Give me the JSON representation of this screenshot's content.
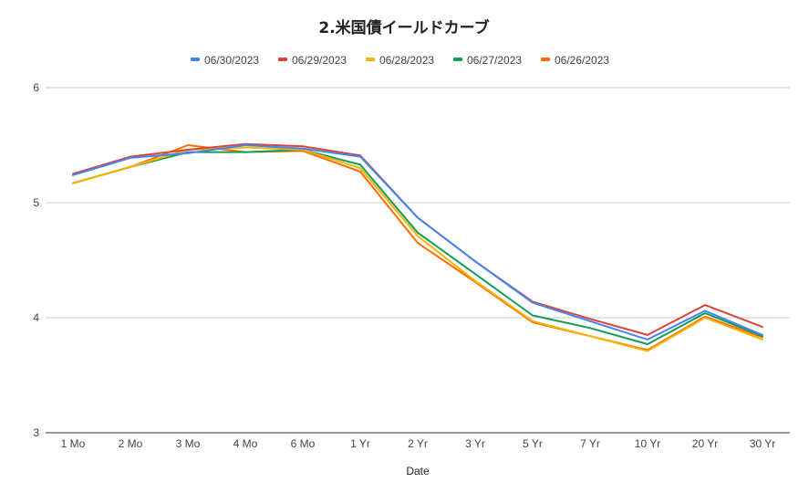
{
  "chart_data": {
    "type": "line",
    "title": "2.米国債イールドカーブ",
    "xlabel": "Date",
    "ylabel": "",
    "ylim": [
      3,
      6
    ],
    "yticks": [
      3,
      4,
      5,
      6
    ],
    "grid": true,
    "legend_position": "top",
    "categories": [
      "1 Mo",
      "2 Mo",
      "3 Mo",
      "4 Mo",
      "6 Mo",
      "1 Yr",
      "2 Yr",
      "3 Yr",
      "5 Yr",
      "7 Yr",
      "10 Yr",
      "20 Yr",
      "30 Yr"
    ],
    "series": [
      {
        "name": "06/30/2023",
        "color": "#4285f4",
        "values": [
          5.24,
          5.39,
          5.43,
          5.5,
          5.47,
          5.4,
          4.87,
          4.49,
          4.13,
          3.97,
          3.81,
          4.06,
          3.85
        ]
      },
      {
        "name": "06/29/2023",
        "color": "#db4437",
        "values": [
          5.25,
          5.4,
          5.46,
          5.51,
          5.49,
          5.41,
          4.87,
          4.49,
          4.14,
          3.99,
          3.85,
          4.11,
          3.92
        ]
      },
      {
        "name": "06/28/2023",
        "color": "#f4b400",
        "values": [
          5.17,
          5.31,
          5.46,
          5.48,
          5.46,
          5.3,
          4.71,
          4.32,
          3.97,
          3.84,
          3.71,
          4.0,
          3.81
        ]
      },
      {
        "name": "06/27/2023",
        "color": "#0f9d58",
        "values": [
          5.17,
          5.31,
          5.44,
          5.44,
          5.46,
          5.33,
          4.74,
          4.38,
          4.02,
          3.91,
          3.77,
          4.04,
          3.84
        ]
      },
      {
        "name": "06/26/2023",
        "color": "#ff6d01",
        "values": [
          5.17,
          5.31,
          5.5,
          5.44,
          5.45,
          5.27,
          4.65,
          4.31,
          3.96,
          3.84,
          3.72,
          4.01,
          3.83
        ]
      }
    ]
  }
}
